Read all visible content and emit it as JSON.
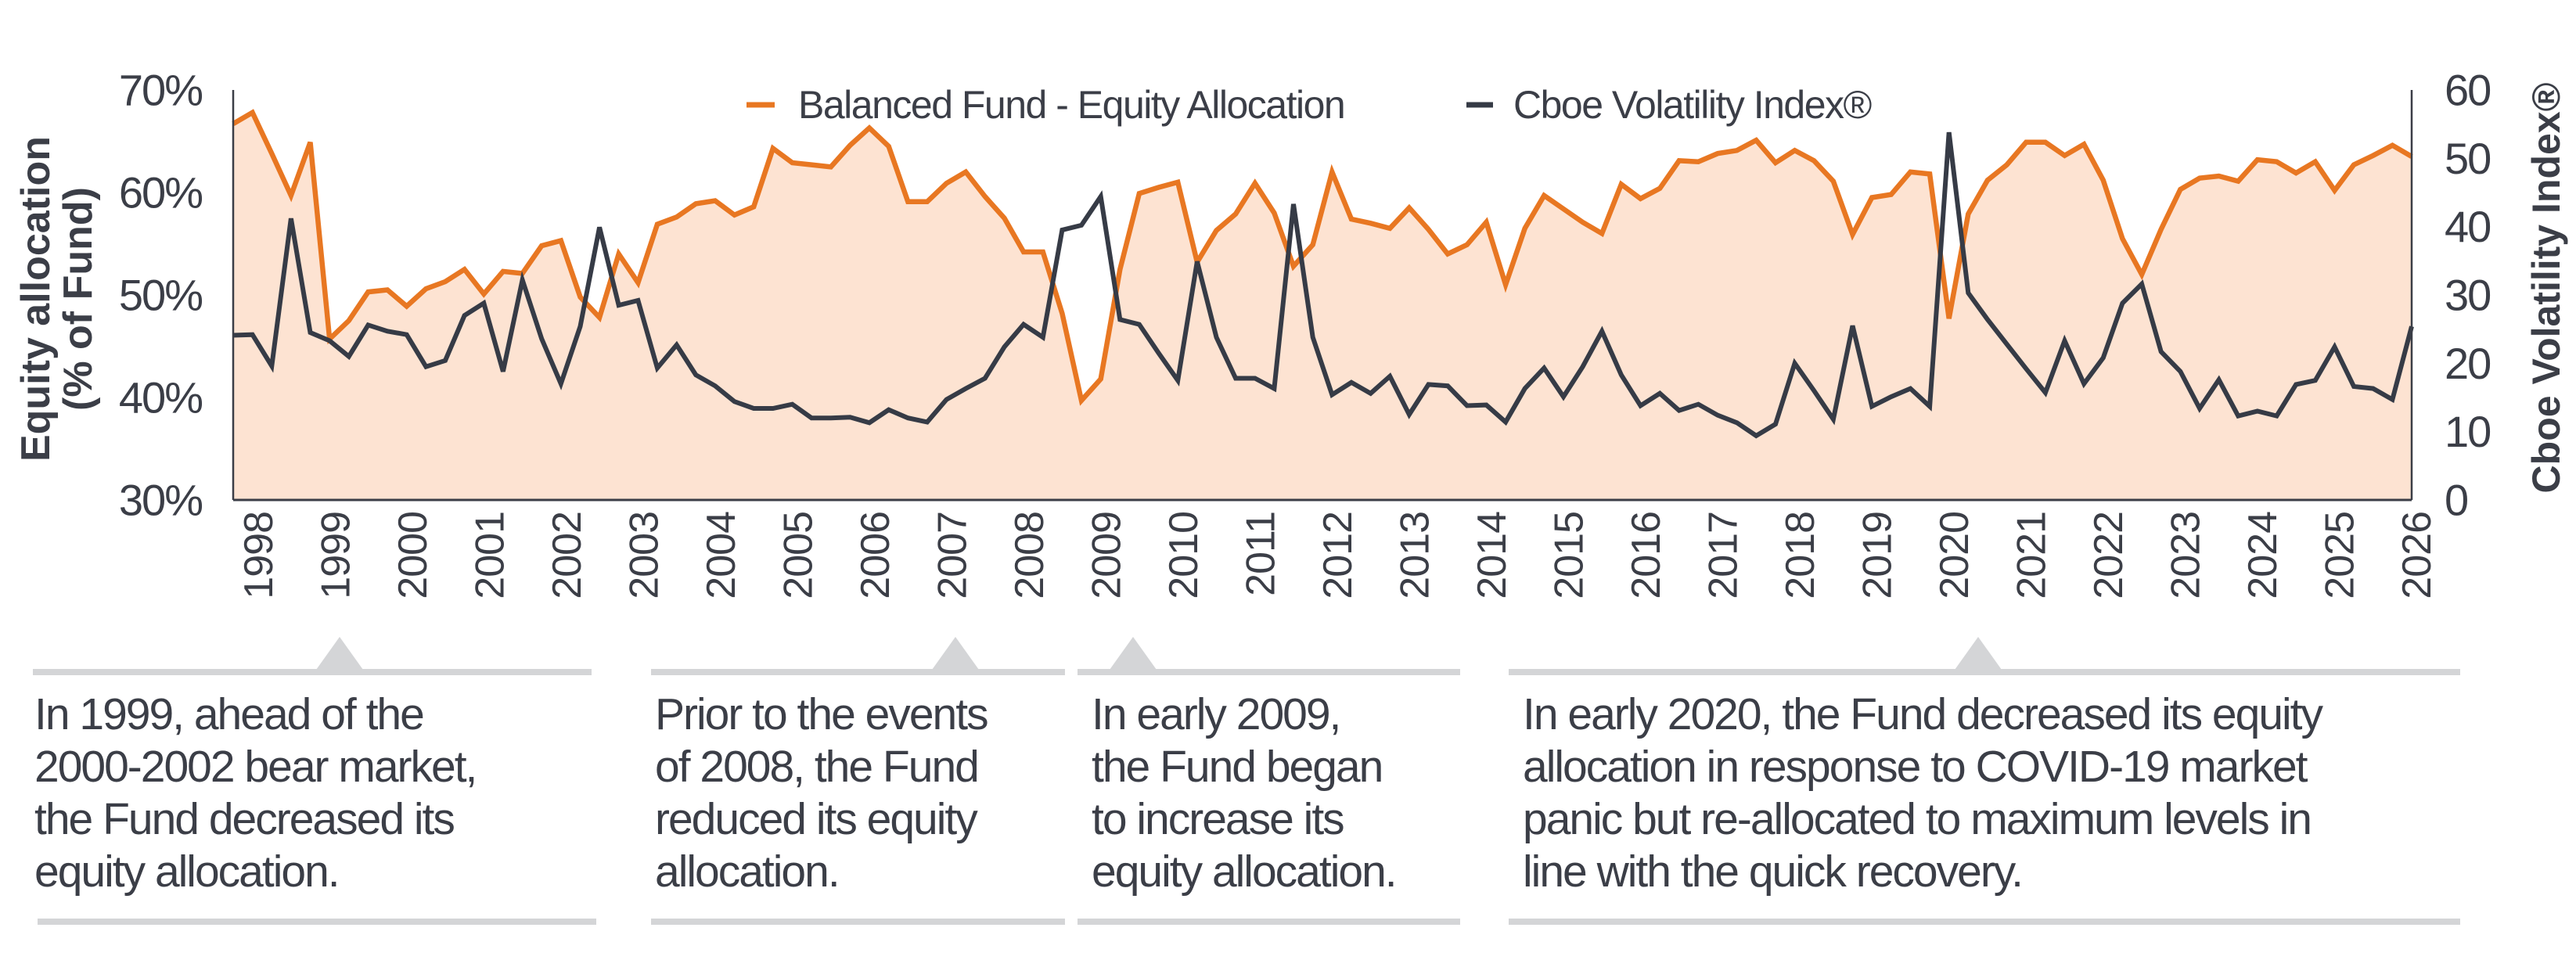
{
  "chart_data": {
    "type": "line",
    "y_left": {
      "label": "Equity allocation",
      "label2": "(% of Fund)",
      "range": [
        30,
        70
      ],
      "ticks": [
        "30%",
        "40%",
        "50%",
        "60%",
        "70%"
      ]
    },
    "y_right": {
      "label": "Cboe Volatility Index®",
      "range": [
        0,
        60
      ],
      "ticks": [
        "0",
        "10",
        "20",
        "30",
        "40",
        "50",
        "60"
      ]
    },
    "x_ticks": [
      "1998",
      "1999",
      "2000",
      "2001",
      "2002",
      "2003",
      "2004",
      "2005",
      "2006",
      "2007",
      "2008",
      "2009",
      "2010",
      "2011",
      "2012",
      "2013",
      "2014",
      "2015",
      "2016",
      "2017",
      "2018",
      "2019",
      "2020",
      "2021",
      "2022",
      "2023",
      "2024",
      "2025",
      "2026"
    ],
    "x_range": [
      "1997-Q3",
      "2025-Q4"
    ],
    "x_frequency": "quarterly",
    "legend_position": "top-center",
    "grid": false,
    "series": [
      {
        "name": "Balanced Fund - Equity Allocation",
        "axis": "left",
        "color": "#e87722",
        "fill": "#fde3d2",
        "values": [
          66.7,
          67.8,
          63.8,
          59.7,
          64.9,
          45.7,
          47.5,
          50.3,
          50.5,
          48.9,
          50.6,
          51.3,
          52.5,
          50.1,
          52.3,
          52.1,
          54.8,
          55.3,
          49.8,
          47.8,
          54.0,
          51.2,
          56.9,
          57.6,
          58.9,
          59.2,
          57.8,
          58.6,
          64.3,
          62.9,
          62.7,
          62.5,
          64.6,
          66.3,
          64.5,
          59.1,
          59.1,
          60.9,
          62.0,
          59.6,
          57.5,
          54.2,
          54.2,
          48.2,
          39.7,
          41.8,
          52.5,
          59.9,
          60.5,
          61.0,
          53.2,
          56.3,
          57.9,
          60.9,
          58.0,
          52.8,
          54.9,
          62.0,
          57.4,
          57.0,
          56.5,
          58.5,
          56.4,
          54.0,
          54.9,
          57.1,
          51.0,
          56.5,
          59.7,
          58.4,
          57.1,
          56.0,
          60.8,
          59.4,
          60.4,
          63.1,
          63.0,
          63.8,
          64.1,
          65.1,
          62.9,
          64.1,
          63.1,
          61.1,
          55.9,
          59.5,
          59.8,
          62.0,
          61.8,
          47.7,
          57.9,
          61.2,
          62.7,
          64.9,
          64.9,
          63.6,
          64.7,
          61.2,
          55.5,
          52.0,
          56.4,
          60.3,
          61.4,
          61.6,
          61.1,
          63.2,
          63.0,
          61.9,
          63.0,
          60.2,
          62.7,
          63.6,
          64.6,
          63.5
        ]
      },
      {
        "name": "Cboe Volatility Index®",
        "axis": "right",
        "color": "#363b46",
        "values": [
          24.1,
          24.2,
          19.6,
          41.2,
          24.5,
          23.3,
          21.0,
          25.6,
          24.7,
          24.2,
          19.5,
          20.4,
          27.0,
          28.8,
          18.8,
          32.2,
          23.6,
          17.0,
          25.4,
          39.9,
          28.5,
          29.2,
          19.3,
          22.7,
          18.3,
          16.7,
          14.4,
          13.4,
          13.4,
          14.0,
          12.0,
          12.0,
          12.1,
          11.3,
          13.2,
          12.0,
          11.4,
          14.7,
          16.3,
          17.8,
          22.4,
          25.7,
          23.8,
          39.5,
          40.2,
          44.4,
          26.4,
          25.7,
          21.5,
          17.5,
          34.9,
          23.8,
          17.8,
          17.8,
          16.3,
          43.3,
          23.8,
          15.4,
          17.2,
          15.6,
          18.1,
          12.5,
          16.9,
          16.7,
          13.8,
          13.9,
          11.4,
          16.3,
          19.3,
          15.1,
          19.5,
          24.7,
          18.3,
          13.8,
          15.6,
          13.1,
          14.0,
          12.4,
          11.3,
          9.4,
          11.1,
          20.0,
          16.0,
          11.8,
          25.5,
          13.7,
          15.1,
          16.3,
          13.7,
          53.8,
          30.3,
          26.4,
          22.8,
          19.2,
          15.7,
          23.3,
          17.0,
          20.8,
          28.8,
          31.6,
          21.7,
          18.8,
          13.4,
          17.6,
          12.3,
          13.0,
          12.3,
          16.9,
          17.5,
          22.4,
          16.6,
          16.3,
          14.7,
          25.4
        ]
      }
    ]
  },
  "annotations": [
    {
      "text": "In 1999, ahead of the\n2000-2002 bear market,\nthe Fund decreased its\nequity allocation.",
      "points_to": "1999"
    },
    {
      "text": "Prior to the events\nof 2008, the Fund\nreduced its equity\nallocation.",
      "points_to": "2007"
    },
    {
      "text": "In early 2009,\nthe Fund began\nto increase its\nequity allocation.",
      "points_to": "2009"
    },
    {
      "text": "In early 2020, the Fund decreased its equity\nallocation in response to COVID-19 market\npanic but re-allocated to maximum levels in\nline with the quick recovery.",
      "points_to": "2020"
    }
  ]
}
